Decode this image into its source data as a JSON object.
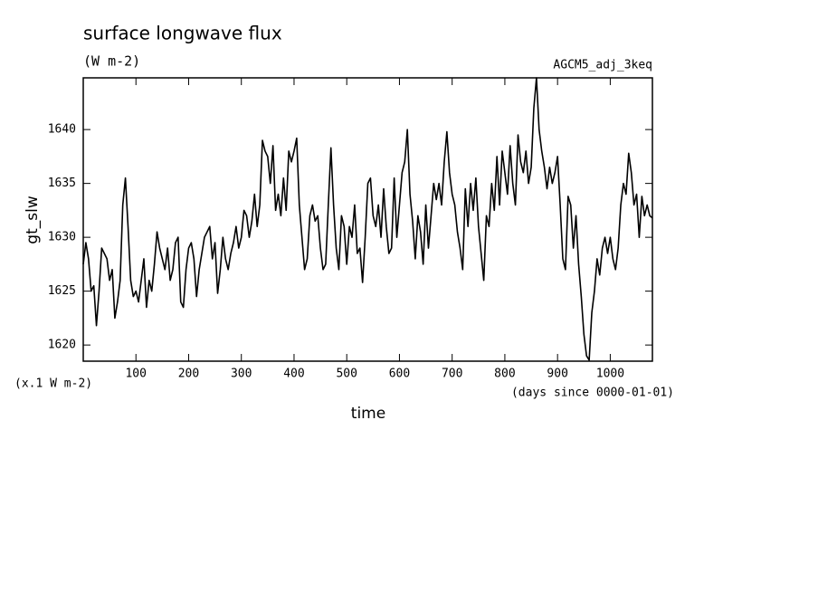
{
  "chart_data": {
    "type": "line",
    "title": "surface longwave flux",
    "subtitle": "(W m-2)",
    "annotation": "AGCM5_adj_3keq",
    "y_label": "gt_slw",
    "y_unit": "(x.1 W m-2)",
    "x_label": "time",
    "x_unit": "(days since 0000-01-01)",
    "x": [
      0,
      5,
      10,
      15,
      20,
      25,
      30,
      35,
      40,
      45,
      50,
      55,
      60,
      65,
      70,
      75,
      80,
      85,
      90,
      95,
      100,
      105,
      110,
      115,
      120,
      125,
      130,
      135,
      140,
      145,
      150,
      155,
      160,
      165,
      170,
      175,
      180,
      185,
      190,
      195,
      200,
      205,
      210,
      215,
      220,
      225,
      230,
      235,
      240,
      245,
      250,
      255,
      260,
      265,
      270,
      275,
      280,
      285,
      290,
      295,
      300,
      305,
      310,
      315,
      320,
      325,
      330,
      335,
      340,
      345,
      350,
      355,
      360,
      365,
      370,
      375,
      380,
      385,
      390,
      395,
      400,
      405,
      410,
      415,
      420,
      425,
      430,
      435,
      440,
      445,
      450,
      455,
      460,
      465,
      470,
      475,
      480,
      485,
      490,
      495,
      500,
      505,
      510,
      515,
      520,
      525,
      530,
      535,
      540,
      545,
      550,
      555,
      560,
      565,
      570,
      575,
      580,
      585,
      590,
      595,
      600,
      605,
      610,
      615,
      620,
      625,
      630,
      635,
      640,
      645,
      650,
      655,
      660,
      665,
      670,
      675,
      680,
      685,
      690,
      695,
      700,
      705,
      710,
      715,
      720,
      725,
      730,
      735,
      740,
      745,
      750,
      755,
      760,
      765,
      770,
      775,
      780,
      785,
      790,
      795,
      800,
      805,
      810,
      815,
      820,
      825,
      830,
      835,
      840,
      845,
      850,
      855,
      860,
      865,
      870,
      875,
      880,
      885,
      890,
      895,
      900,
      905,
      910,
      915,
      920,
      925,
      930,
      935,
      940,
      945,
      950,
      955,
      960,
      965,
      970,
      975,
      980,
      985,
      990,
      995,
      1000,
      1005,
      1010,
      1015,
      1020,
      1025,
      1030,
      1035,
      1040,
      1045,
      1050,
      1055,
      1060,
      1065,
      1070,
      1075,
      1080
    ],
    "series": [
      {
        "color": "#000000",
        "values": [
          1627.5,
          1629.5,
          1628,
          1625,
          1625.5,
          1621.8,
          1625,
          1629,
          1628.5,
          1628,
          1626,
          1627,
          1622.5,
          1624,
          1626,
          1633,
          1635.5,
          1631,
          1626,
          1624.5,
          1625,
          1624,
          1626,
          1628,
          1623.5,
          1626,
          1625,
          1627.5,
          1630.5,
          1629,
          1628,
          1627,
          1629,
          1626,
          1627,
          1629.5,
          1630,
          1624,
          1623.5,
          1627,
          1629,
          1629.5,
          1628,
          1624.5,
          1627,
          1628.5,
          1630,
          1630.5,
          1631,
          1628,
          1629.5,
          1624.8,
          1627,
          1630,
          1628,
          1627,
          1628.5,
          1629.5,
          1631,
          1629,
          1630,
          1632.5,
          1632,
          1630,
          1631.5,
          1634,
          1631,
          1633,
          1639,
          1638,
          1637.5,
          1635,
          1638.5,
          1632.5,
          1634,
          1632,
          1635.5,
          1632.5,
          1638,
          1637,
          1638,
          1639.2,
          1633,
          1630,
          1627,
          1628,
          1632,
          1633,
          1631.5,
          1632,
          1629,
          1627,
          1627.5,
          1633,
          1638.3,
          1633,
          1629,
          1627,
          1632,
          1631,
          1627.5,
          1631,
          1630,
          1633,
          1628.5,
          1629,
          1625.8,
          1630,
          1635,
          1635.5,
          1632,
          1631,
          1633,
          1630,
          1634.5,
          1631,
          1628.5,
          1629,
          1635.5,
          1630,
          1633,
          1636,
          1637,
          1640,
          1634,
          1631.5,
          1628,
          1632,
          1630.5,
          1627.5,
          1633,
          1629,
          1632,
          1635,
          1633.5,
          1635,
          1633,
          1637,
          1639.8,
          1636,
          1634,
          1633,
          1630.5,
          1629,
          1627,
          1634.5,
          1631,
          1635,
          1632.5,
          1635.5,
          1631,
          1628.5,
          1626,
          1632,
          1631,
          1635,
          1632.5,
          1637.5,
          1633,
          1638,
          1636,
          1634,
          1638.5,
          1635,
          1633,
          1639.5,
          1637,
          1636,
          1638,
          1635,
          1636.5,
          1642,
          1644.8,
          1640,
          1638,
          1636.5,
          1634.5,
          1636.5,
          1635,
          1636,
          1637.5,
          1633,
          1628,
          1627,
          1633.8,
          1633,
          1629,
          1632,
          1627.5,
          1624.5,
          1621,
          1619,
          1618.6,
          1623,
          1625,
          1628,
          1626.5,
          1629,
          1630,
          1628.5,
          1630,
          1628,
          1627,
          1629,
          1633,
          1635,
          1634,
          1637.8,
          1636,
          1633,
          1634,
          1630,
          1633.8,
          1632,
          1633,
          1632,
          1631.8
        ]
      }
    ],
    "xlim": [
      0,
      1080
    ],
    "ylim": [
      1618.5,
      1644.8
    ],
    "xticks": [
      100,
      200,
      300,
      400,
      500,
      600,
      700,
      800,
      900,
      1000
    ],
    "yticks": [
      1620,
      1625,
      1630,
      1635,
      1640
    ]
  }
}
